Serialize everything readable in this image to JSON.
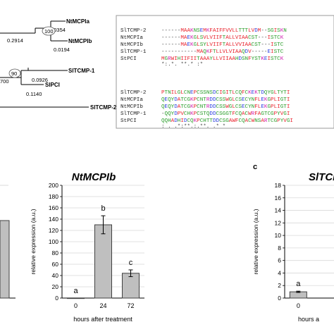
{
  "tree": {
    "taxa": [
      "NtMCPIa",
      "NtMCPIb",
      "SlTCMP-1",
      "SlPCI",
      "SlTCMP-2"
    ],
    "bootstrap": [
      "100",
      "90"
    ],
    "branch_lengths": [
      "0.0354",
      "0.2914",
      "0.0194",
      "0.0926",
      "0.1140",
      "700"
    ]
  },
  "alignment": {
    "block1": {
      "names": [
        "SlTCMP-2",
        "NtMCPIa",
        "NtMCPIb",
        "SlTCMP-1",
        "StPCI"
      ],
      "seqs": [
        "------MAAKNSEMKFAIFFVVLLTTTLVDM--SGISKN",
        "------MAEKGLSVLVIIFTALLVIAACST---ISTCK",
        "------MAEKGLSYLVIIFTALLVVIAACST---ISTC",
        "-----------MAQKFTLLVLVIAAQDV-----EISTC",
        "MGRWIHIIFIITAAAYLLVIIAAHDSNFYSTKEISTCK"
      ],
      "consensus": "           *:.*. **.*     :* "
    },
    "block2": {
      "names": [
        "SlTCMP-2",
        "NtMCPIa",
        "NtMCPIb",
        "SlTCMP-1",
        "StPCI"
      ],
      "seqs": [
        "PTNILGLCNEPCSSNSDCIGITLCQFCKEKTDQYGLTYTI",
        "QEQYDATCGKPCNTRDDCSSWGLCSECYNFLEKGPLIGTI",
        "QEQYDATCGKPCNTRDDCSSWGLCSECYNFLEKGPLIGTI",
        "-QQYDPVCHKPCSTQDDCSGGTFCQACWRFAGTCGPYVGI",
        "QQHADHIDCQKPCHTTDDCSGAWFCQACWNSARTCGPYVGI"
      ],
      "consensus": " :  .  .*:**.:.**.  .* * "
    }
  },
  "charts": [
    {
      "title": "",
      "bars": [
        {
          "category": "",
          "value": 0.69
        }
      ],
      "ylabel": "",
      "xlabel": ""
    },
    {
      "title": "NtMCPIb",
      "categories": [
        "0",
        "24",
        "72"
      ],
      "values": [
        0.2,
        130,
        44
      ],
      "errors": [
        0,
        16,
        6
      ],
      "letters": [
        "a",
        "b",
        "c"
      ],
      "ylim": [
        0,
        200
      ],
      "yticks": [
        "0",
        "20",
        "40",
        "60",
        "80",
        "100",
        "120",
        "140",
        "160",
        "180",
        "200"
      ],
      "ylabel": "relative expression (a.u.)",
      "xlabel": "hours after treatment"
    },
    {
      "panel_label": "c",
      "title": "SlTCM",
      "categories": [
        "0"
      ],
      "values": [
        1.0
      ],
      "errors": [
        0.1
      ],
      "letters": [
        "a"
      ],
      "yticks": [
        "0",
        "2",
        "4",
        "6",
        "8",
        "10",
        "12",
        "14",
        "16",
        "18"
      ],
      "ylabel": "relative expression (a.u.)",
      "xlabel": "hours a"
    }
  ],
  "chart_data": [
    {
      "type": "bar",
      "title": "NtMCPIb",
      "categories": [
        "0",
        "24",
        "72"
      ],
      "values": [
        0.2,
        130,
        44
      ],
      "error_bars": [
        0,
        16,
        6
      ],
      "significance_letters": [
        "a",
        "b",
        "c"
      ],
      "xlabel": "hours after treatment",
      "ylabel": "relative expression (a.u.)",
      "ylim": [
        0,
        200
      ],
      "grid": true
    },
    {
      "type": "bar",
      "title": "SlTCM",
      "categories": [
        "0"
      ],
      "values": [
        1.0
      ],
      "error_bars": [
        0.1
      ],
      "significance_letters": [
        "a"
      ],
      "xlabel": "hours a",
      "ylabel": "relative expression (a.u.)",
      "grid": true
    }
  ],
  "colors": {
    "bar_fill": "#bfbfbf",
    "bar_stroke": "#404040",
    "grid": "#d9d9d9",
    "red_residue": "#e8202a",
    "blue_residue": "#2a3ee0",
    "magenta_residue": "#d01eb0",
    "green_residue": "#2a9d2a",
    "gray_residue": "#555555"
  }
}
